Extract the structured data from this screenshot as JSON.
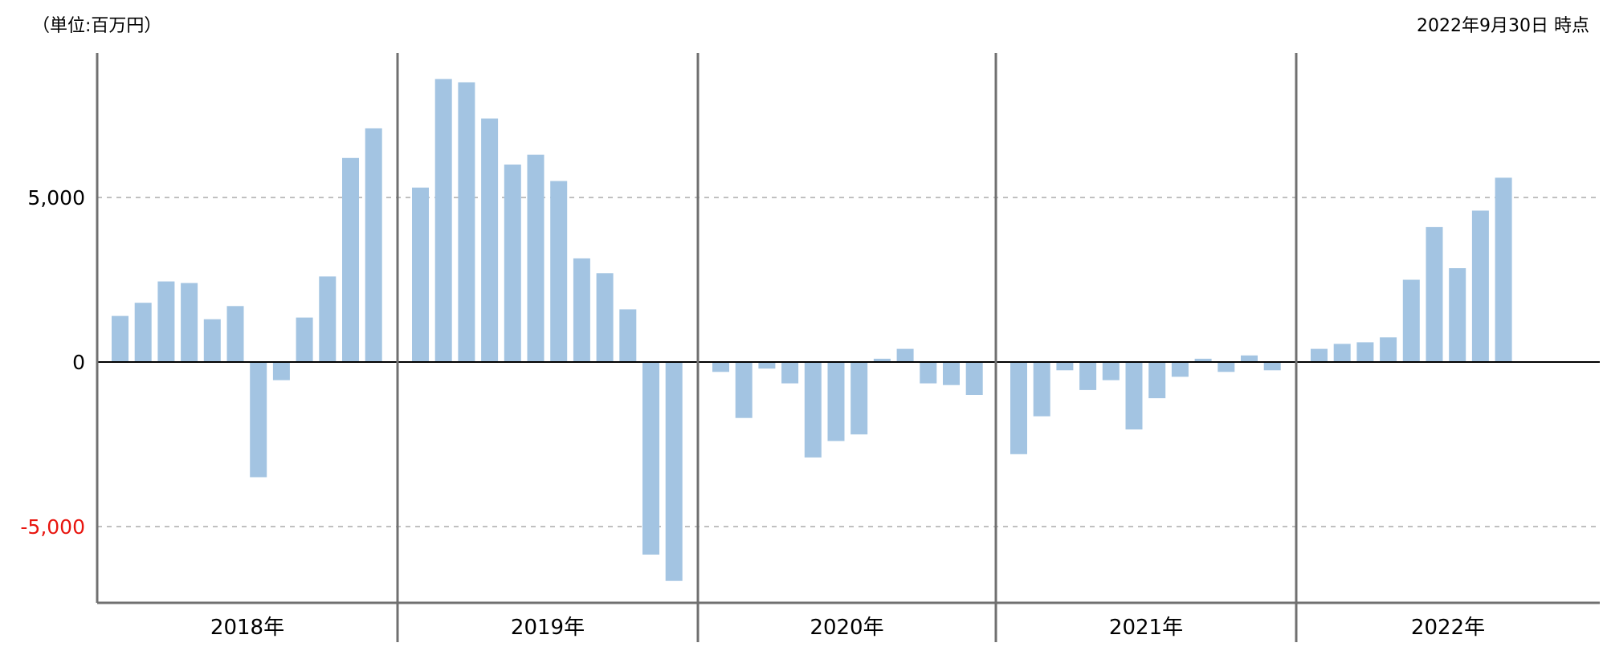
{
  "header": {
    "unit": "（単位:百万円）",
    "as_of": "2022年9月30日 時点"
  },
  "colors": {
    "bar": "#a3c4e2",
    "negative_tick": "#e8150f",
    "grid": "#c0c0c0",
    "axis": "#000000",
    "separator": "#707070"
  },
  "chart_data": {
    "type": "bar",
    "title": "",
    "xlabel": "",
    "ylabel": "",
    "ylim": [
      -7500,
      9500
    ],
    "yticks": [
      {
        "value": 5000,
        "label": "5,000"
      },
      {
        "value": 0,
        "label": "0"
      },
      {
        "value": -5000,
        "label": "-5,000"
      }
    ],
    "grid": "dashed at ±5,000",
    "years": [
      {
        "label": "2018年",
        "values": [
          1400,
          1800,
          2450,
          2400,
          1300,
          1700,
          -3500,
          -550,
          1350,
          2600,
          6200,
          7100
        ]
      },
      {
        "label": "2019年",
        "values": [
          5300,
          8600,
          8500,
          7400,
          6000,
          6300,
          5500,
          3150,
          2700,
          1600,
          -5850,
          -6650
        ]
      },
      {
        "label": "2020年",
        "values": [
          -300,
          -1700,
          -200,
          -650,
          -2900,
          -2400,
          -2200,
          100,
          400,
          -650,
          -700,
          -1000
        ]
      },
      {
        "label": "2021年",
        "values": [
          -2800,
          -1650,
          -250,
          -850,
          -550,
          -2050,
          -1100,
          -450,
          100,
          -300,
          200,
          -250
        ]
      },
      {
        "label": "2022年",
        "values": [
          400,
          550,
          600,
          750,
          2500,
          4100,
          2850,
          4600,
          5600
        ]
      }
    ]
  }
}
